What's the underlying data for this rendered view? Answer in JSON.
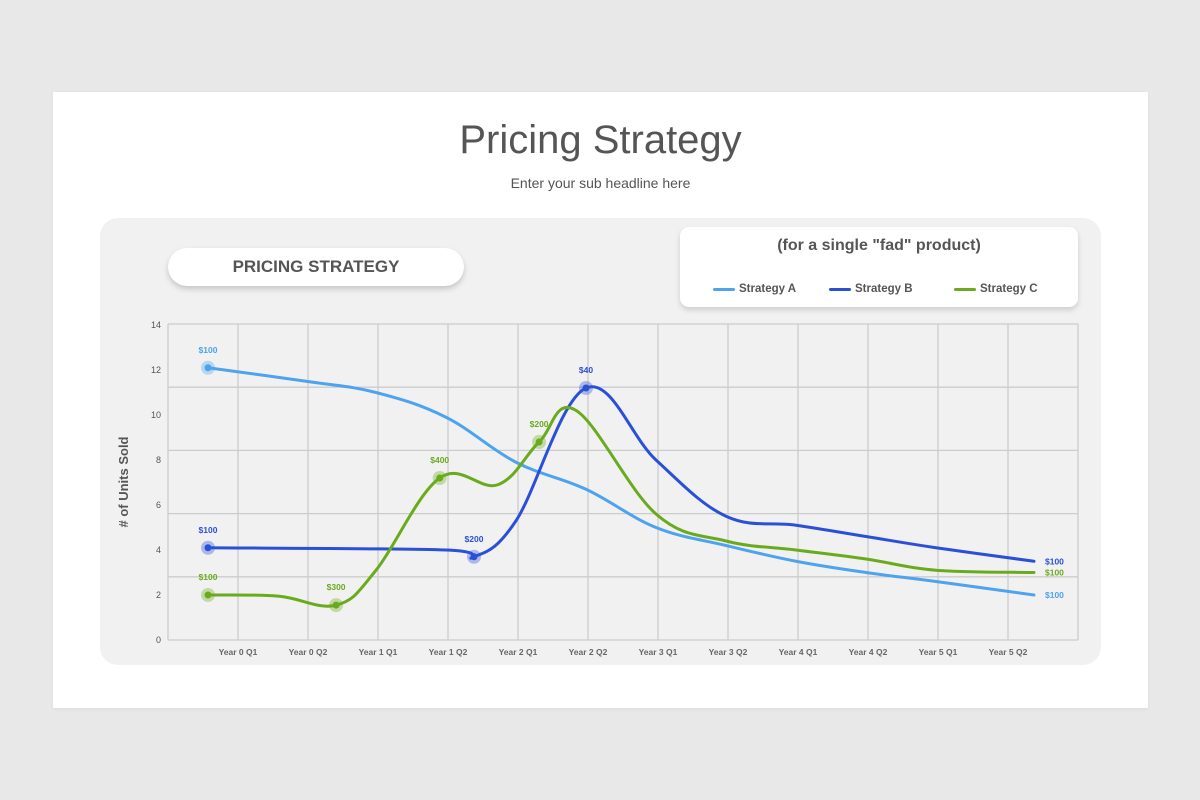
{
  "slide": {
    "title": "Pricing Strategy",
    "subtitle": "Enter your sub headline here"
  },
  "panel": {
    "pill_label": "PRICING STRATEGY",
    "legend_title": "(for a single \"fad\" product)"
  },
  "colors": {
    "strategy_a": "#4da3ee",
    "strategy_b": "#2b50d8",
    "strategy_c": "#6aab1e",
    "grid": "#cccccc",
    "text": "#555555"
  },
  "chart_data": {
    "type": "line",
    "title": "PRICING STRATEGY",
    "subtitle": "(for a single \"fad\" product)",
    "xlabel": "",
    "ylabel": "# of Units Sold",
    "ylim": [
      0,
      14
    ],
    "yticks": [
      0,
      2,
      4,
      6,
      8,
      10,
      12,
      14
    ],
    "grid": true,
    "legend_position": "top-right",
    "categories": [
      "Year 0 Q1",
      "Year 0 Q2",
      "Year 1 Q1",
      "Year 1 Q2",
      "Year 2 Q1",
      "Year 2 Q2",
      "Year 3 Q1",
      "Year 3 Q2",
      "Year 4 Q1",
      "Year 4 Q2",
      "Year 5 Q1",
      "Year 5 Q2"
    ],
    "series": [
      {
        "name": "Strategy A",
        "color": "#4da3ee",
        "x": [
          0,
          1.4,
          2.4,
          3.4,
          4.4,
          5.4,
          6.4,
          7.4,
          8.4,
          9.4,
          10.4,
          11.8
        ],
        "values": [
          12.1,
          11.5,
          11.0,
          9.9,
          7.9,
          6.7,
          5.0,
          4.2,
          3.5,
          3.0,
          2.6,
          2.0
        ],
        "annotations": [
          {
            "x": 0,
            "value": 12.1,
            "label": "$100"
          },
          {
            "x": 11.8,
            "value": 2.0,
            "label": "$100"
          }
        ]
      },
      {
        "name": "Strategy B",
        "color": "#2b50d8",
        "x": [
          0,
          3.4,
          3.8,
          4.4,
          5.4,
          6.4,
          7.4,
          8.4,
          9.4,
          10.4,
          11.8
        ],
        "values": [
          4.1,
          4.0,
          3.7,
          5.3,
          11.2,
          8.0,
          5.5,
          5.1,
          4.6,
          4.1,
          3.5
        ],
        "annotations": [
          {
            "x": 0,
            "value": 4.1,
            "label": "$100"
          },
          {
            "x": 3.8,
            "value": 3.7,
            "label": "$200"
          },
          {
            "x": 5.4,
            "value": 11.2,
            "label": "$40"
          },
          {
            "x": 11.8,
            "value": 3.5,
            "label": "$100"
          }
        ]
      },
      {
        "name": "Strategy C",
        "color": "#6aab1e",
        "x": [
          0,
          1.0,
          1.83,
          2.4,
          3.31,
          4.14,
          4.73,
          5.26,
          6.4,
          7.4,
          8.4,
          9.4,
          10.4,
          11.8
        ],
        "values": [
          2.0,
          1.95,
          1.55,
          3.1,
          7.2,
          6.9,
          8.8,
          10.2,
          5.6,
          4.4,
          4.0,
          3.6,
          3.1,
          3.0
        ],
        "annotations": [
          {
            "x": 0,
            "value": 2.0,
            "label": "$100"
          },
          {
            "x": 1.83,
            "value": 1.55,
            "label": "$300"
          },
          {
            "x": 3.31,
            "value": 7.2,
            "label": "$400"
          },
          {
            "x": 4.73,
            "value": 8.8,
            "label": "$200"
          },
          {
            "x": 11.8,
            "value": 3.0,
            "label": "$100"
          }
        ]
      }
    ]
  },
  "legend": {
    "items": [
      {
        "label": "Strategy A",
        "color": "#4da3ee"
      },
      {
        "label": "Strategy B",
        "color": "#2b50d8"
      },
      {
        "label": "Strategy C",
        "color": "#6aab1e"
      }
    ]
  }
}
